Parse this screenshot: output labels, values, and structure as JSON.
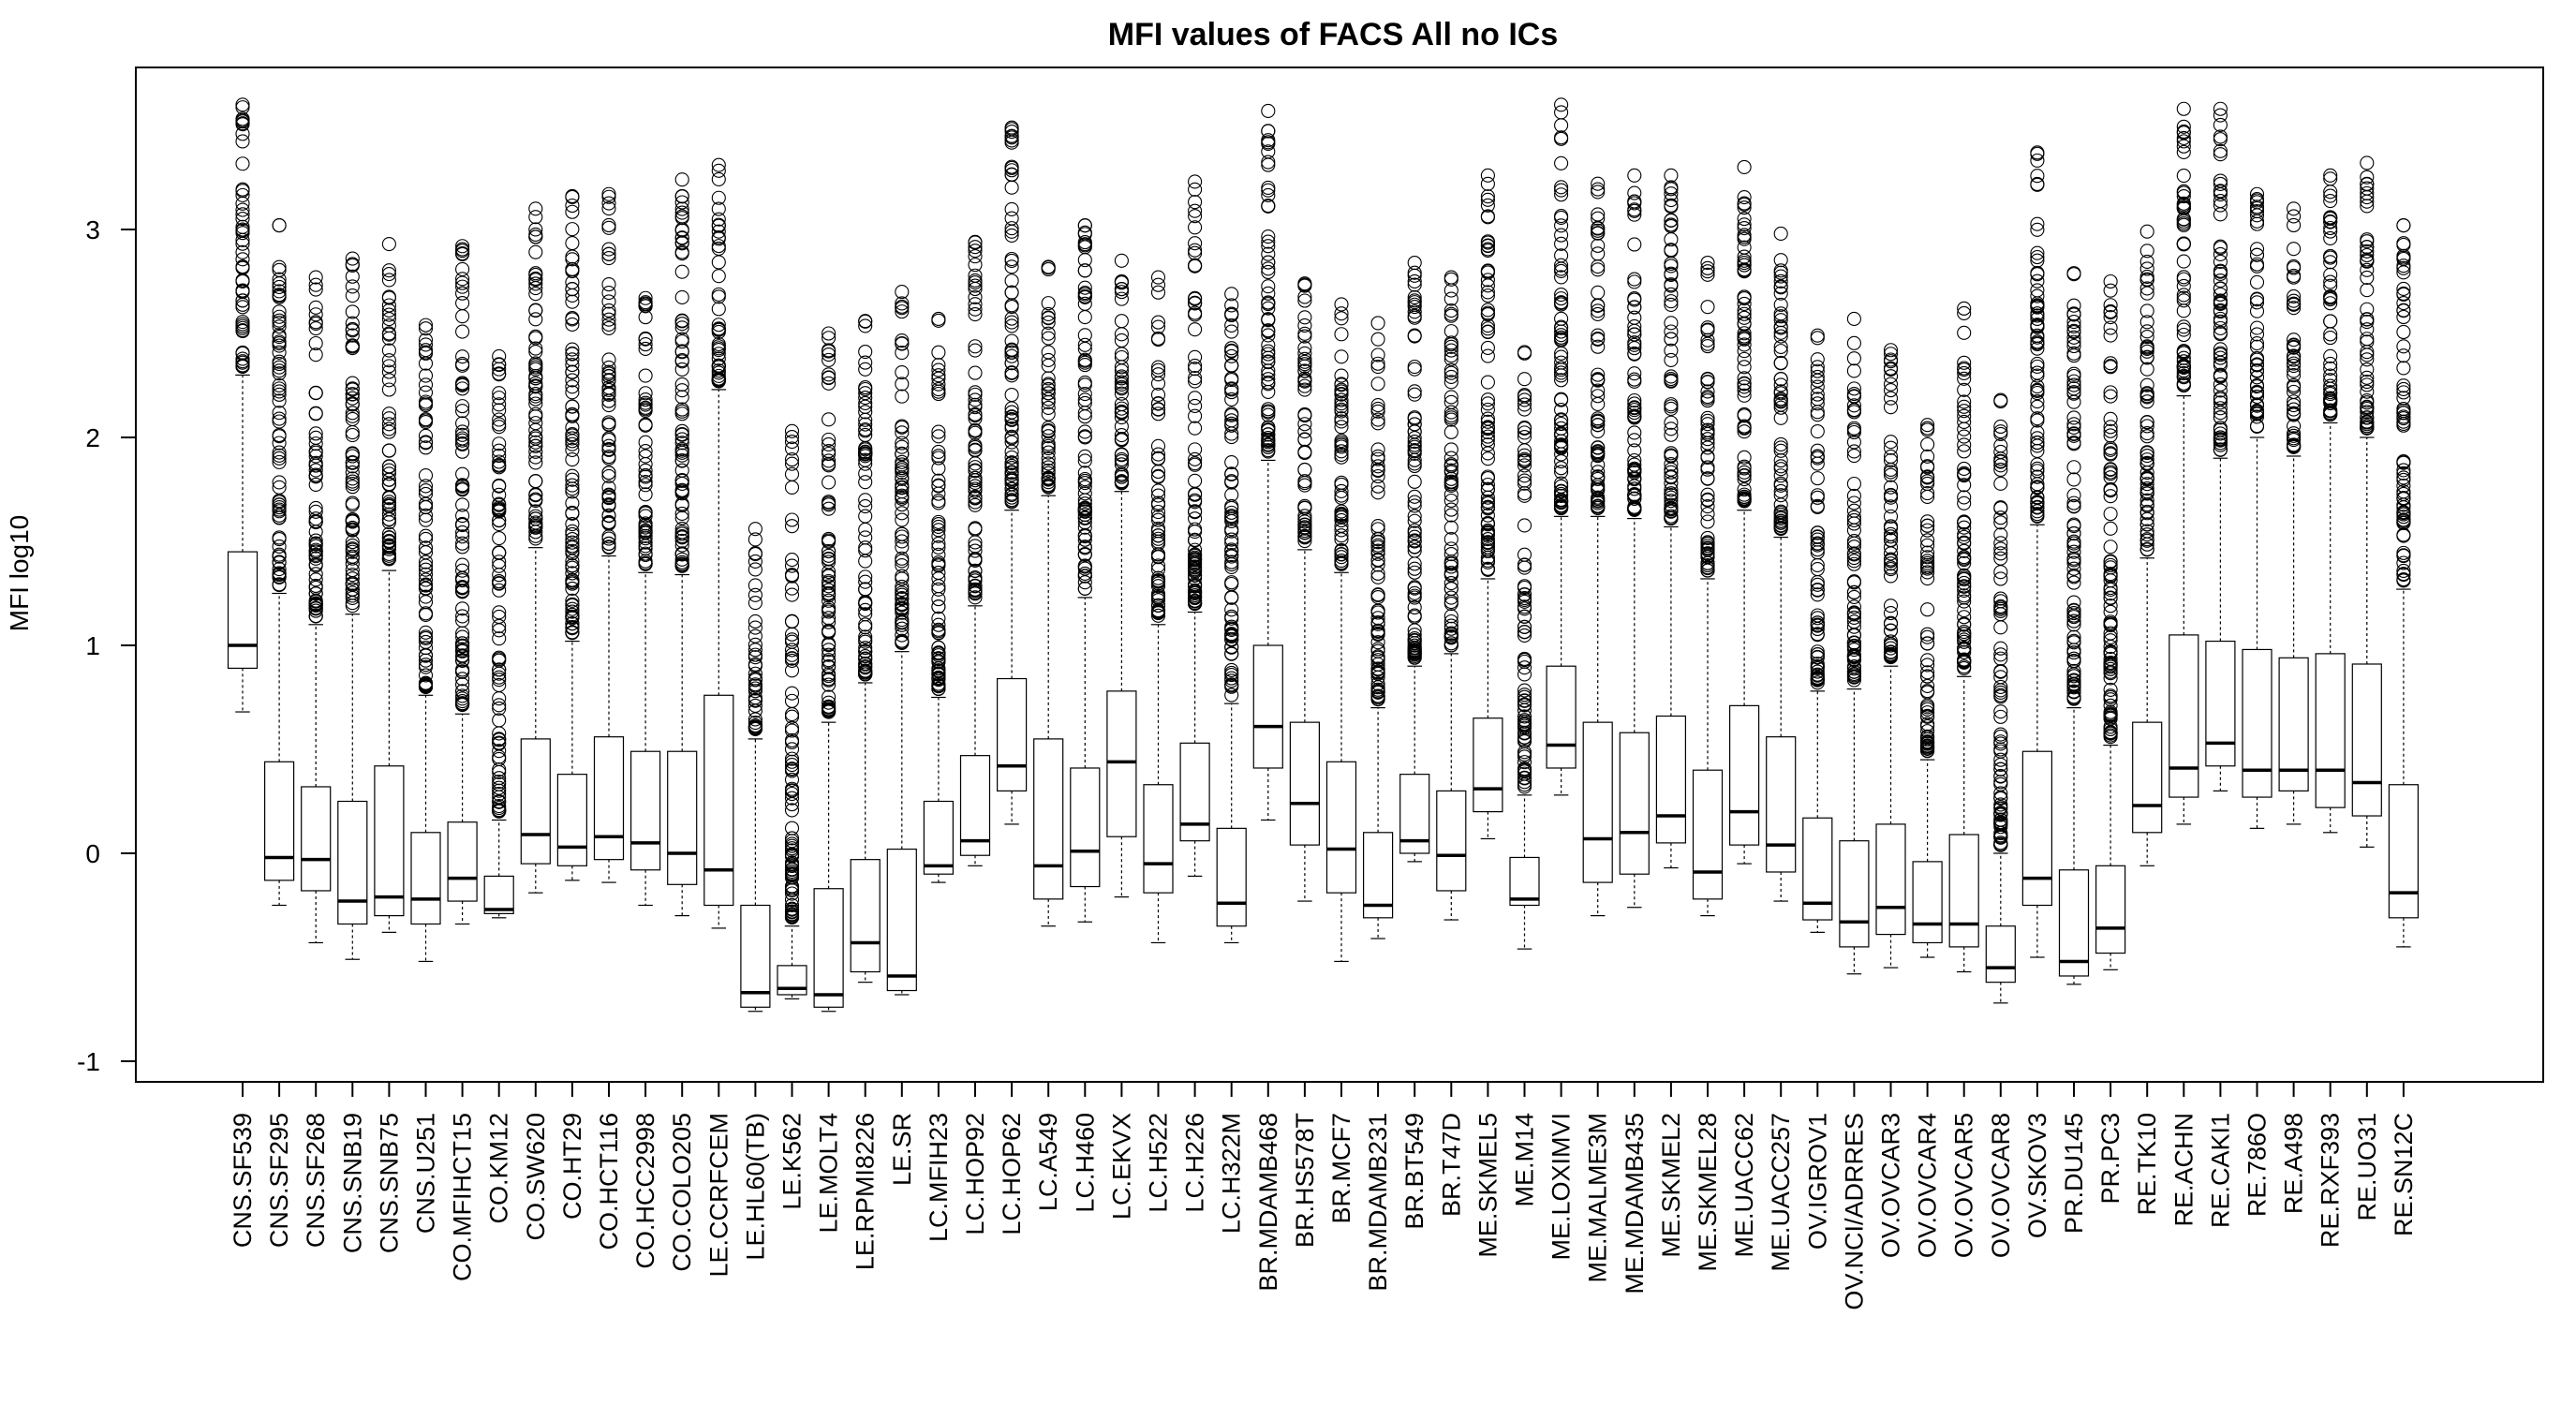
{
  "chart_data": {
    "type": "box",
    "title": "MFI values of FACS All no ICs",
    "xlabel": "",
    "ylabel": "MFI log10",
    "ylim": [
      -1.1,
      3.8
    ],
    "yticks": [
      -1,
      0,
      1,
      2,
      3
    ],
    "grid": false,
    "categories": [
      "CNS.SF539",
      "CNS.SF295",
      "CNS.SF268",
      "CNS.SNB19",
      "CNS.SNB75",
      "CNS.U251",
      "CO.MFIHCT15",
      "CO.KM12",
      "CO.SW620",
      "CO.HT29",
      "CO.HCT116",
      "CO.HCC2998",
      "CO.COLO205",
      "LE.CCRFCEM",
      "LE.HL60(TB)",
      "LE.K562",
      "LE.MOLT4",
      "LE.RPMI8226",
      "LE.SR",
      "LC.MFIH23",
      "LC.HOP92",
      "LC.HOP62",
      "LC.A549",
      "LC.H460",
      "LC.EKVX",
      "LC.H522",
      "LC.H226",
      "LC.H322M",
      "BR.MDAMB468",
      "BR.HS578T",
      "BR.MCF7",
      "BR.MDAMB231",
      "BR.BT549",
      "BR.T47D",
      "ME.SKMEL5",
      "ME.M14",
      "ME.LOXIMVI",
      "ME.MALME3M",
      "ME.MDAMB435",
      "ME.SKMEL2",
      "ME.SKMEL28",
      "ME.UACC62",
      "ME.UACC257",
      "OV.IGROV1",
      "OV.NCI/ADRRES",
      "OV.OVCAR3",
      "OV.OVCAR4",
      "OV.OVCAR5",
      "OV.OVCAR8",
      "OV.SKOV3",
      "PR.DU145",
      "PR.PC3",
      "RE.TK10",
      "RE.ACHN",
      "RE.CAKI1",
      "RE.786O",
      "RE.A498",
      "RE.RXF393",
      "RE.UO31",
      "RE.SN12C"
    ],
    "boxes": [
      {
        "whisker_low": 0.68,
        "q1": 0.89,
        "median": 1.0,
        "q3": 1.45,
        "whisker_high": 2.3,
        "outlier_max": 3.6
      },
      {
        "whisker_low": -0.25,
        "q1": -0.13,
        "median": -0.02,
        "q3": 0.44,
        "whisker_high": 1.25,
        "outlier_max": 3.02
      },
      {
        "whisker_low": -0.43,
        "q1": -0.18,
        "median": -0.03,
        "q3": 0.32,
        "whisker_high": 1.1,
        "outlier_max": 2.77
      },
      {
        "whisker_low": -0.51,
        "q1": -0.34,
        "median": -0.23,
        "q3": 0.25,
        "whisker_high": 1.15,
        "outlier_max": 2.86
      },
      {
        "whisker_low": -0.38,
        "q1": -0.3,
        "median": -0.21,
        "q3": 0.42,
        "whisker_high": 1.36,
        "outlier_max": 2.93
      },
      {
        "whisker_low": -0.52,
        "q1": -0.34,
        "median": -0.22,
        "q3": 0.1,
        "whisker_high": 0.76,
        "outlier_max": 2.54
      },
      {
        "whisker_low": -0.34,
        "q1": -0.23,
        "median": -0.12,
        "q3": 0.15,
        "whisker_high": 0.67,
        "outlier_max": 2.92
      },
      {
        "whisker_low": -0.31,
        "q1": -0.29,
        "median": -0.27,
        "q3": -0.11,
        "whisker_high": 0.16,
        "outlier_max": 2.39
      },
      {
        "whisker_low": -0.19,
        "q1": -0.05,
        "median": 0.09,
        "q3": 0.55,
        "whisker_high": 1.47,
        "outlier_max": 3.1
      },
      {
        "whisker_low": -0.13,
        "q1": -0.06,
        "median": 0.03,
        "q3": 0.38,
        "whisker_high": 1.02,
        "outlier_max": 3.16
      },
      {
        "whisker_low": -0.14,
        "q1": -0.03,
        "median": 0.08,
        "q3": 0.56,
        "whisker_high": 1.43,
        "outlier_max": 3.17
      },
      {
        "whisker_low": -0.25,
        "q1": -0.08,
        "median": 0.05,
        "q3": 0.49,
        "whisker_high": 1.35,
        "outlier_max": 2.67
      },
      {
        "whisker_low": -0.3,
        "q1": -0.15,
        "median": 0.0,
        "q3": 0.49,
        "whisker_high": 1.34,
        "outlier_max": 3.24
      },
      {
        "whisker_low": -0.36,
        "q1": -0.25,
        "median": -0.08,
        "q3": 0.76,
        "whisker_high": 2.23,
        "outlier_max": 3.31
      },
      {
        "whisker_low": -0.76,
        "q1": -0.74,
        "median": -0.67,
        "q3": -0.25,
        "whisker_high": 0.55,
        "outlier_max": 1.56
      },
      {
        "whisker_low": -0.7,
        "q1": -0.68,
        "median": -0.65,
        "q3": -0.54,
        "whisker_high": -0.35,
        "outlier_max": 2.03
      },
      {
        "whisker_low": -0.76,
        "q1": -0.74,
        "median": -0.68,
        "q3": -0.17,
        "whisker_high": 0.63,
        "outlier_max": 2.5
      },
      {
        "whisker_low": -0.62,
        "q1": -0.57,
        "median": -0.43,
        "q3": -0.03,
        "whisker_high": 0.82,
        "outlier_max": 2.56
      },
      {
        "whisker_low": -0.68,
        "q1": -0.66,
        "median": -0.59,
        "q3": 0.02,
        "whisker_high": 0.97,
        "outlier_max": 2.7
      },
      {
        "whisker_low": -0.14,
        "q1": -0.1,
        "median": -0.06,
        "q3": 0.25,
        "whisker_high": 0.75,
        "outlier_max": 2.57
      },
      {
        "whisker_low": -0.06,
        "q1": -0.01,
        "median": 0.06,
        "q3": 0.47,
        "whisker_high": 1.19,
        "outlier_max": 2.94
      },
      {
        "whisker_low": 0.14,
        "q1": 0.3,
        "median": 0.42,
        "q3": 0.84,
        "whisker_high": 1.65,
        "outlier_max": 3.49
      },
      {
        "whisker_low": -0.35,
        "q1": -0.22,
        "median": -0.06,
        "q3": 0.55,
        "whisker_high": 1.72,
        "outlier_max": 2.82
      },
      {
        "whisker_low": -0.33,
        "q1": -0.16,
        "median": 0.01,
        "q3": 0.41,
        "whisker_high": 1.23,
        "outlier_max": 3.02
      },
      {
        "whisker_low": -0.21,
        "q1": 0.08,
        "median": 0.44,
        "q3": 0.78,
        "whisker_high": 1.74,
        "outlier_max": 2.85
      },
      {
        "whisker_low": -0.43,
        "q1": -0.19,
        "median": -0.05,
        "q3": 0.33,
        "whisker_high": 1.1,
        "outlier_max": 2.77
      },
      {
        "whisker_low": -0.11,
        "q1": 0.06,
        "median": 0.14,
        "q3": 0.53,
        "whisker_high": 1.16,
        "outlier_max": 3.23
      },
      {
        "whisker_low": -0.43,
        "q1": -0.35,
        "median": -0.24,
        "q3": 0.12,
        "whisker_high": 0.72,
        "outlier_max": 2.69
      },
      {
        "whisker_low": 0.16,
        "q1": 0.41,
        "median": 0.61,
        "q3": 1.0,
        "whisker_high": 1.89,
        "outlier_max": 3.57
      },
      {
        "whisker_low": -0.23,
        "q1": 0.04,
        "median": 0.24,
        "q3": 0.63,
        "whisker_high": 1.46,
        "outlier_max": 2.74
      },
      {
        "whisker_low": -0.52,
        "q1": -0.19,
        "median": 0.02,
        "q3": 0.44,
        "whisker_high": 1.35,
        "outlier_max": 2.64
      },
      {
        "whisker_low": -0.41,
        "q1": -0.31,
        "median": -0.25,
        "q3": 0.1,
        "whisker_high": 0.7,
        "outlier_max": 2.55
      },
      {
        "whisker_low": -0.04,
        "q1": 0.0,
        "median": 0.06,
        "q3": 0.38,
        "whisker_high": 0.9,
        "outlier_max": 2.84
      },
      {
        "whisker_low": -0.32,
        "q1": -0.18,
        "median": -0.01,
        "q3": 0.3,
        "whisker_high": 0.96,
        "outlier_max": 2.77
      },
      {
        "whisker_low": 0.07,
        "q1": 0.2,
        "median": 0.31,
        "q3": 0.65,
        "whisker_high": 1.32,
        "outlier_max": 3.26
      },
      {
        "whisker_low": -0.46,
        "q1": -0.25,
        "median": -0.22,
        "q3": -0.02,
        "whisker_high": 0.28,
        "outlier_max": 2.41
      },
      {
        "whisker_low": 0.28,
        "q1": 0.41,
        "median": 0.52,
        "q3": 0.9,
        "whisker_high": 1.62,
        "outlier_max": 3.6
      },
      {
        "whisker_low": -0.3,
        "q1": -0.14,
        "median": 0.07,
        "q3": 0.63,
        "whisker_high": 1.62,
        "outlier_max": 3.22
      },
      {
        "whisker_low": -0.26,
        "q1": -0.1,
        "median": 0.1,
        "q3": 0.58,
        "whisker_high": 1.61,
        "outlier_max": 3.26
      },
      {
        "whisker_low": -0.07,
        "q1": 0.05,
        "median": 0.18,
        "q3": 0.66,
        "whisker_high": 1.57,
        "outlier_max": 3.26
      },
      {
        "whisker_low": -0.3,
        "q1": -0.22,
        "median": -0.09,
        "q3": 0.4,
        "whisker_high": 1.32,
        "outlier_max": 2.84
      },
      {
        "whisker_low": -0.05,
        "q1": 0.04,
        "median": 0.2,
        "q3": 0.71,
        "whisker_high": 1.65,
        "outlier_max": 3.3
      },
      {
        "whisker_low": -0.23,
        "q1": -0.09,
        "median": 0.04,
        "q3": 0.56,
        "whisker_high": 1.52,
        "outlier_max": 2.98
      },
      {
        "whisker_low": -0.38,
        "q1": -0.32,
        "median": -0.24,
        "q3": 0.17,
        "whisker_high": 0.78,
        "outlier_max": 2.49
      },
      {
        "whisker_low": -0.58,
        "q1": -0.45,
        "median": -0.33,
        "q3": 0.06,
        "whisker_high": 0.79,
        "outlier_max": 2.57
      },
      {
        "whisker_low": -0.55,
        "q1": -0.39,
        "median": -0.26,
        "q3": 0.14,
        "whisker_high": 0.9,
        "outlier_max": 2.42
      },
      {
        "whisker_low": -0.5,
        "q1": -0.43,
        "median": -0.34,
        "q3": -0.04,
        "whisker_high": 0.45,
        "outlier_max": 2.06
      },
      {
        "whisker_low": -0.57,
        "q1": -0.45,
        "median": -0.34,
        "q3": 0.09,
        "whisker_high": 0.85,
        "outlier_max": 2.62
      },
      {
        "whisker_low": -0.72,
        "q1": -0.62,
        "median": -0.55,
        "q3": -0.35,
        "whisker_high": 0.0,
        "outlier_max": 2.18
      },
      {
        "whisker_low": -0.5,
        "q1": -0.25,
        "median": -0.12,
        "q3": 0.49,
        "whisker_high": 1.58,
        "outlier_max": 3.37
      },
      {
        "whisker_low": -0.63,
        "q1": -0.59,
        "median": -0.52,
        "q3": -0.08,
        "whisker_high": 0.7,
        "outlier_max": 2.79
      },
      {
        "whisker_low": -0.56,
        "q1": -0.48,
        "median": -0.36,
        "q3": -0.06,
        "whisker_high": 0.52,
        "outlier_max": 2.75
      },
      {
        "whisker_low": -0.06,
        "q1": 0.1,
        "median": 0.23,
        "q3": 0.63,
        "whisker_high": 1.42,
        "outlier_max": 2.99
      },
      {
        "whisker_low": 0.14,
        "q1": 0.27,
        "median": 0.41,
        "q3": 1.05,
        "whisker_high": 2.2,
        "outlier_max": 3.58
      },
      {
        "whisker_low": 0.3,
        "q1": 0.42,
        "median": 0.53,
        "q3": 1.02,
        "whisker_high": 1.9,
        "outlier_max": 3.58
      },
      {
        "whisker_low": 0.12,
        "q1": 0.27,
        "median": 0.4,
        "q3": 0.98,
        "whisker_high": 2.0,
        "outlier_max": 3.17
      },
      {
        "whisker_low": 0.14,
        "q1": 0.3,
        "median": 0.4,
        "q3": 0.94,
        "whisker_high": 1.91,
        "outlier_max": 3.1
      },
      {
        "whisker_low": 0.1,
        "q1": 0.22,
        "median": 0.4,
        "q3": 0.96,
        "whisker_high": 2.07,
        "outlier_max": 3.26
      },
      {
        "whisker_low": 0.03,
        "q1": 0.18,
        "median": 0.34,
        "q3": 0.91,
        "whisker_high": 2.0,
        "outlier_max": 3.32
      },
      {
        "whisker_low": -0.45,
        "q1": -0.31,
        "median": -0.19,
        "q3": 0.33,
        "whisker_high": 1.27,
        "outlier_max": 3.02
      }
    ]
  }
}
